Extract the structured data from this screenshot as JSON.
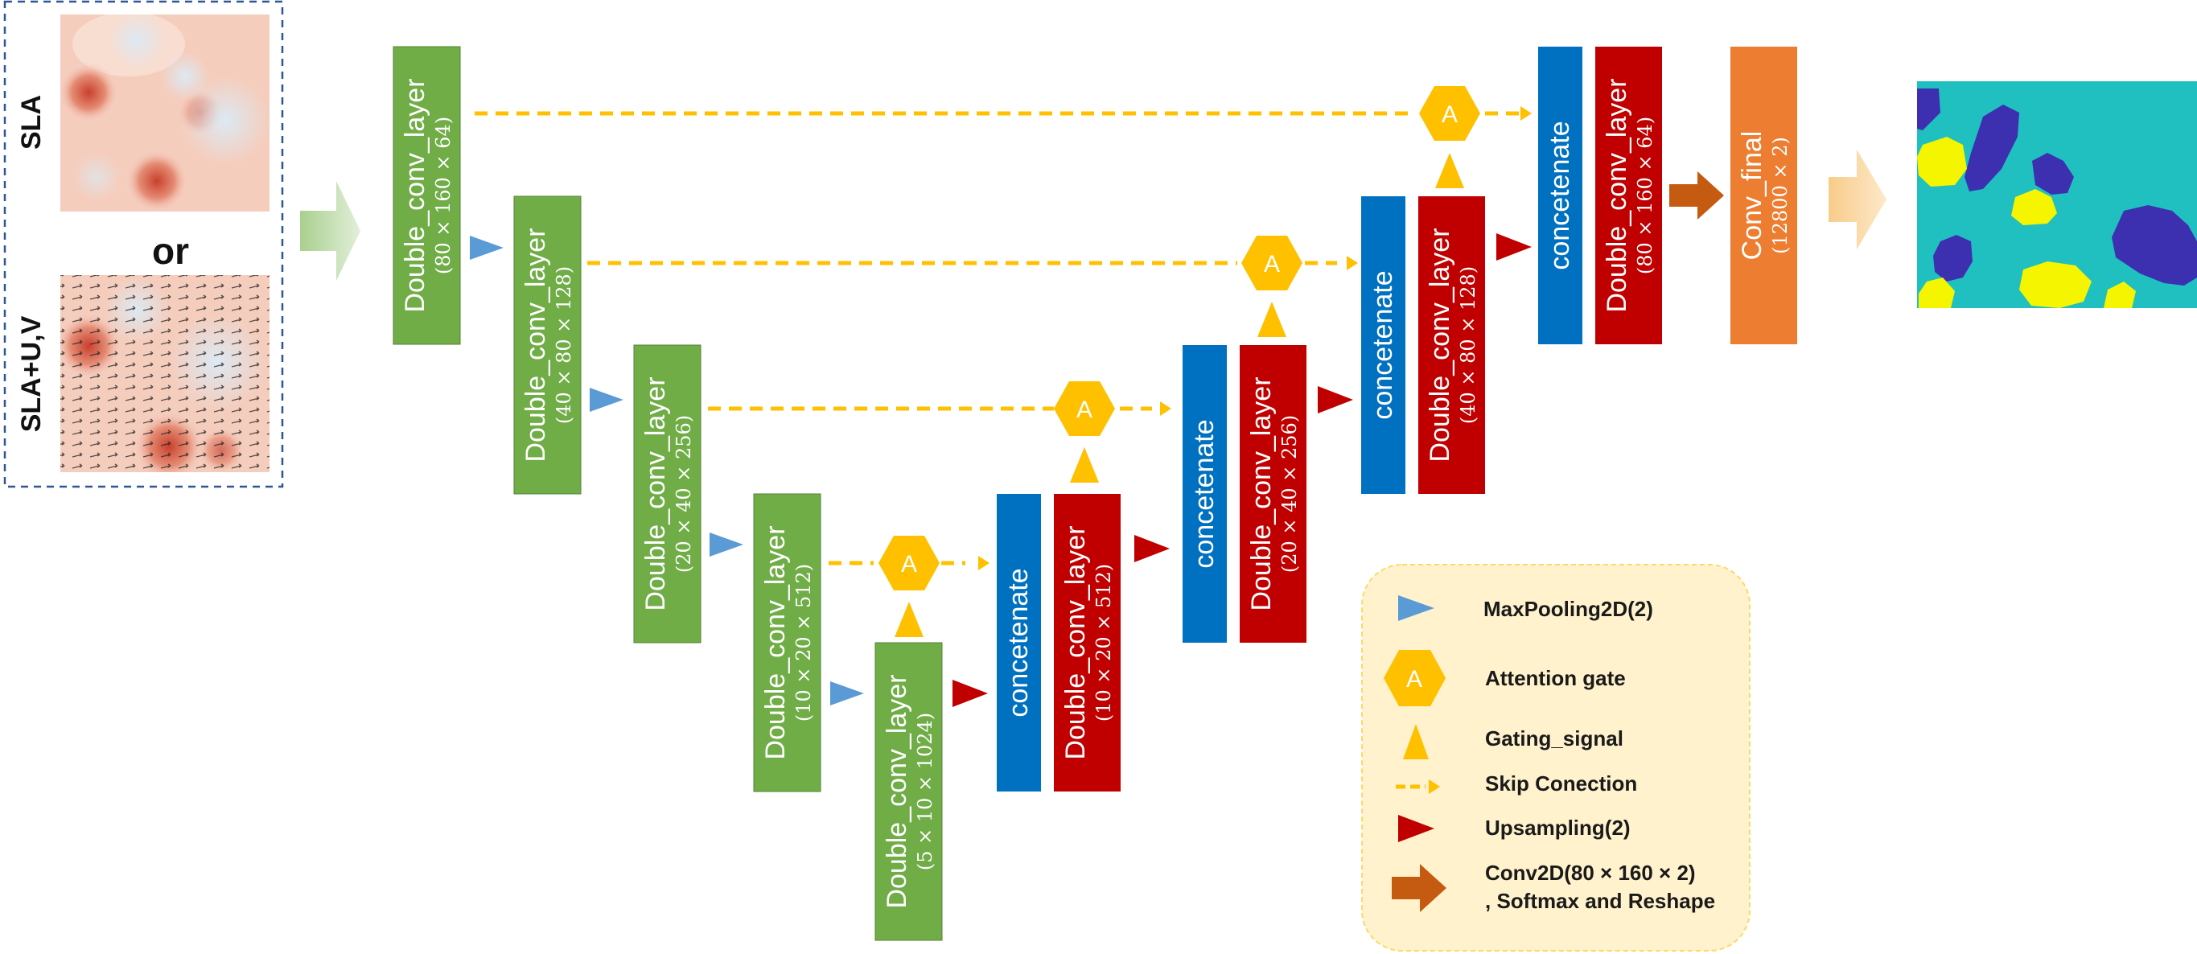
{
  "inputs": {
    "top_label": "SLA",
    "or_label": "or",
    "bottom_label": "SLA+U,V"
  },
  "blocks": {
    "enc1": {
      "label": "Double_conv_layer",
      "sub": "(80 × 160 × 64)"
    },
    "enc2": {
      "label": "Double_conv_layer",
      "sub": "(40 × 80 × 128)"
    },
    "enc3": {
      "label": "Double_conv_layer",
      "sub": "(20 × 40 × 256)"
    },
    "enc4": {
      "label": "Double_conv_layer",
      "sub": "(10 × 20 × 512)"
    },
    "bottleneck": {
      "label": "Double_conv_layer",
      "sub": "(5 × 10 × 1024)"
    },
    "cat4": {
      "label": "concetenate"
    },
    "dec4": {
      "label": "Double_conv_layer",
      "sub": "(10 × 20 × 512)"
    },
    "cat3": {
      "label": "concetenate"
    },
    "dec3": {
      "label": "Double_conv_layer",
      "sub": "(20 × 40 × 256)"
    },
    "cat2": {
      "label": "concetenate"
    },
    "dec2": {
      "label": "Double_conv_layer",
      "sub": "(40 × 80 × 128)"
    },
    "cat1": {
      "label": "concetenate"
    },
    "dec1": {
      "label": "Double_conv_layer",
      "sub": "(80 × 160 × 64)"
    },
    "final": {
      "label": "Conv_final",
      "sub": "(12800 × 2)"
    }
  },
  "attention_symbol": "A",
  "legend": {
    "maxpool": "MaxPooling2D(2)",
    "attention": "Attention gate",
    "gating": "Gating_signal",
    "skip": "Skip Conection",
    "upsampling": "Upsampling(2)",
    "conv_line1": "Conv2D(80 × 160 × 2)",
    "conv_line2": ", Softmax and Reshape"
  },
  "colors": {
    "encoder_green": "#70ad47",
    "decoder_red": "#c00000",
    "concat_blue": "#0070c0",
    "final_orange": "#ed7d31",
    "attention_yellow": "#ffc000",
    "maxpool_blue": "#5b9bd5",
    "legend_bg": "#fff2cc",
    "map_teal": "#20c0c0",
    "map_purple": "#3c2fb0",
    "map_yellow": "#f5f500"
  }
}
